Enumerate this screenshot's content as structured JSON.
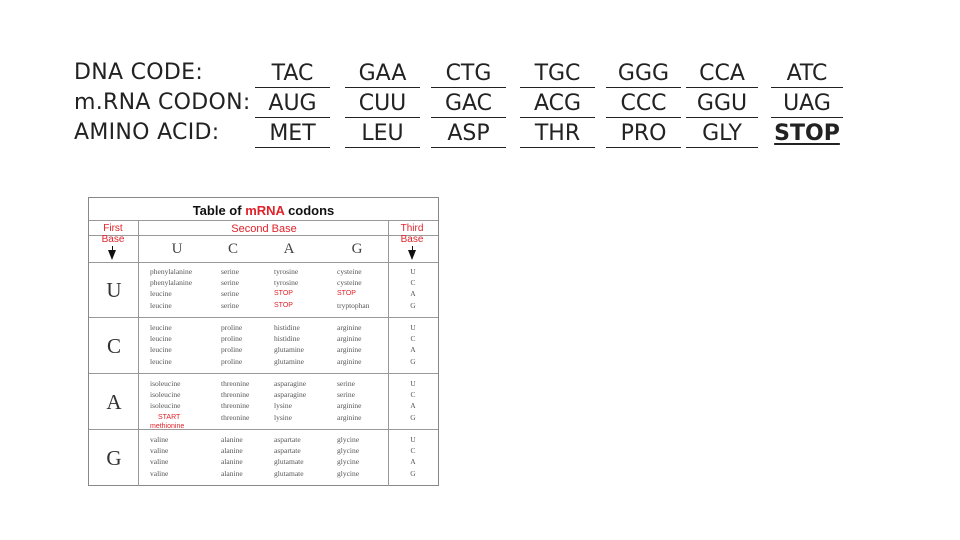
{
  "translation": {
    "rows": [
      {
        "label": "DNA CODE:",
        "cells": [
          "TAC",
          "GAA",
          "CTG",
          "TGC",
          "GGG",
          "CCA",
          "ATC"
        ]
      },
      {
        "label": "m.RNA CODON:",
        "cells": [
          "AUG",
          "CUU",
          "GAC",
          "ACG",
          "CCC",
          "GGU",
          "UAG"
        ]
      },
      {
        "label": "AMINO ACID:",
        "cells": [
          "MET",
          "LEU",
          "ASP",
          "THR",
          "PRO",
          "GLY",
          "STOP"
        ]
      }
    ]
  },
  "codon_table": {
    "title_prefix": "Table of",
    "title_highlight": "mRNA",
    "title_suffix": "codons",
    "first_base_line1": "First",
    "first_base_line2": "Base",
    "second_base": "Second Base",
    "third_base_line1": "Third",
    "third_base_line2": "Base",
    "second_letters": [
      "U",
      "C",
      "A",
      "G"
    ],
    "blocks": [
      {
        "letter": "U",
        "cols": [
          [
            [
              "phenylalanine",
              false
            ],
            [
              "phenylalanine",
              false
            ],
            [
              "leucine",
              false
            ],
            [
              "leucine",
              false
            ]
          ],
          [
            [
              "serine",
              false
            ],
            [
              "serine",
              false
            ],
            [
              "serine",
              false
            ],
            [
              "serine",
              false
            ]
          ],
          [
            [
              "tyrosine",
              false
            ],
            [
              "tyrosine",
              false
            ],
            [
              "STOP",
              true
            ],
            [
              "STOP",
              true
            ]
          ],
          [
            [
              "cysteine",
              false
            ],
            [
              "cysteine",
              false
            ],
            [
              "STOP",
              true
            ],
            [
              "tryptophan",
              false
            ]
          ]
        ],
        "third": [
          "U",
          "C",
          "A",
          "G"
        ]
      },
      {
        "letter": "C",
        "cols": [
          [
            [
              "leucine",
              false
            ],
            [
              "leucine",
              false
            ],
            [
              "leucine",
              false
            ],
            [
              "leucine",
              false
            ]
          ],
          [
            [
              "proline",
              false
            ],
            [
              "proline",
              false
            ],
            [
              "proline",
              false
            ],
            [
              "proline",
              false
            ]
          ],
          [
            [
              "histidine",
              false
            ],
            [
              "histidine",
              false
            ],
            [
              "glutamine",
              false
            ],
            [
              "glutamine",
              false
            ]
          ],
          [
            [
              "arginine",
              false
            ],
            [
              "arginine",
              false
            ],
            [
              "arginine",
              false
            ],
            [
              "arginine",
              false
            ]
          ]
        ],
        "third": [
          "U",
          "C",
          "A",
          "G"
        ]
      },
      {
        "letter": "A",
        "cols": [
          [
            [
              "isoleucine",
              false
            ],
            [
              "isoleucine",
              false
            ],
            [
              "isoleucine",
              false
            ],
            [
              "methionine",
              false
            ]
          ],
          [
            [
              "threonine",
              false
            ],
            [
              "threonine",
              false
            ],
            [
              "threonine",
              false
            ],
            [
              "threonine",
              false
            ]
          ],
          [
            [
              "asparagine",
              false
            ],
            [
              "asparagine",
              false
            ],
            [
              "lysine",
              false
            ],
            [
              "lysine",
              false
            ]
          ],
          [
            [
              "serine",
              false
            ],
            [
              "serine",
              false
            ],
            [
              "arginine",
              false
            ],
            [
              "arginine",
              false
            ]
          ]
        ],
        "start_label": "START",
        "start_amino": "methionine",
        "third": [
          "U",
          "C",
          "A",
          "G"
        ]
      },
      {
        "letter": "G",
        "cols": [
          [
            [
              "valine",
              false
            ],
            [
              "valine",
              false
            ],
            [
              "valine",
              false
            ],
            [
              "valine",
              false
            ]
          ],
          [
            [
              "alanine",
              false
            ],
            [
              "alanine",
              false
            ],
            [
              "alanine",
              false
            ],
            [
              "alanine",
              false
            ]
          ],
          [
            [
              "aspartate",
              false
            ],
            [
              "aspartate",
              false
            ],
            [
              "glutamate",
              false
            ],
            [
              "glutamate",
              false
            ]
          ],
          [
            [
              "glycine",
              false
            ],
            [
              "glycine",
              false
            ],
            [
              "glycine",
              false
            ],
            [
              "glycine",
              false
            ]
          ]
        ],
        "third": [
          "U",
          "C",
          "A",
          "G"
        ]
      }
    ],
    "colors": {
      "accent": "#e0232a",
      "text": "#444444",
      "lines": "#999999"
    }
  }
}
